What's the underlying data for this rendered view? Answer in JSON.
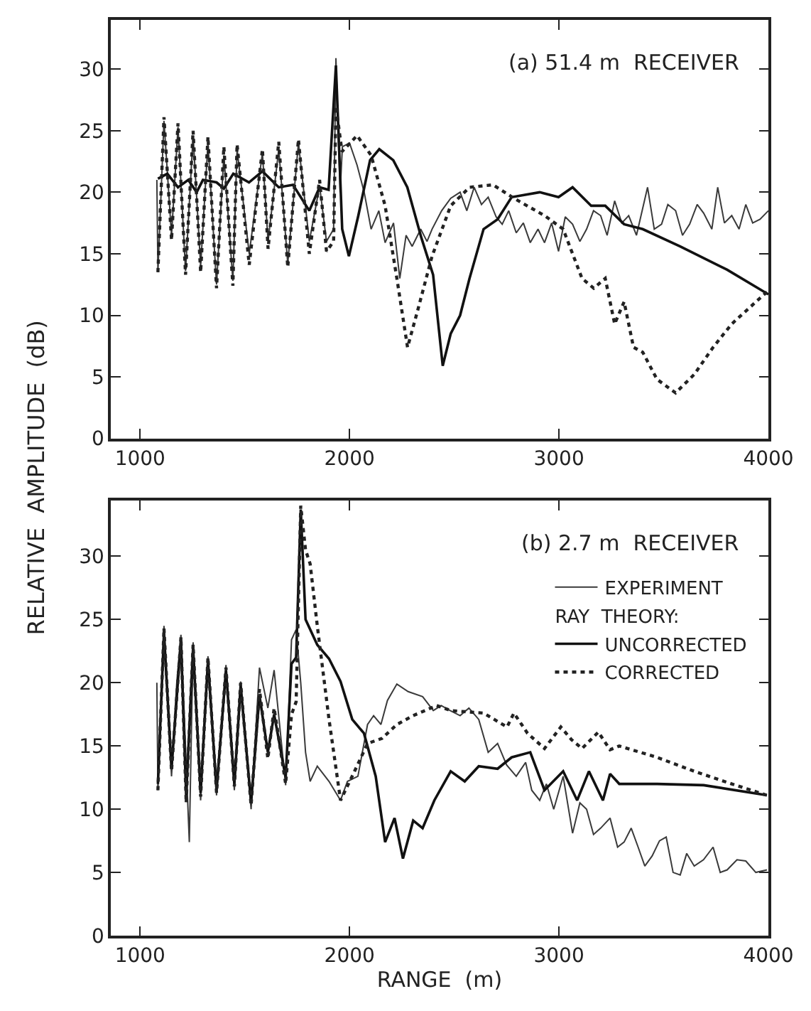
{
  "chart_data": [
    {
      "type": "line",
      "annotations": [
        "(a) 51.4 m  RECEIVER"
      ],
      "ylabel": "RELATIVE  AMPLITUDE  (dB)",
      "xlim": [
        860,
        4000
      ],
      "xticks": [
        1000,
        2000,
        3000,
        4000
      ],
      "ylim": [
        0,
        34
      ],
      "yticks": [
        0,
        5,
        10,
        15,
        20,
        25,
        30
      ],
      "series": [
        {
          "color": "#3a3a3a",
          "line_style": "solid",
          "x": [
            1080,
            1085,
            1114,
            1150,
            1181,
            1217,
            1253,
            1289,
            1324,
            1365,
            1400,
            1443,
            1463,
            1521,
            1584,
            1611,
            1662,
            1705,
            1756,
            1808,
            1857,
            1890,
            1924,
            1935,
            1955,
            1966,
            2000,
            2036,
            2070,
            2103,
            2140,
            2170,
            2210,
            2240,
            2270,
            2299,
            2340,
            2370,
            2394,
            2440,
            2483,
            2528,
            2560,
            2595,
            2630,
            2662,
            2700,
            2729,
            2760,
            2796,
            2830,
            2863,
            2900,
            2931,
            2965,
            2998,
            3030,
            3065,
            3100,
            3132,
            3165,
            3199,
            3230,
            3266,
            3300,
            3333,
            3370,
            3423,
            3455,
            3490,
            3520,
            3557,
            3590,
            3624,
            3660,
            3691,
            3730,
            3758,
            3790,
            3825,
            3860,
            3892,
            3925,
            3960,
            4000
          ],
          "values": [
            21,
            13.5,
            25.8,
            16.5,
            25.3,
            13.6,
            24.6,
            14.0,
            24.0,
            12.5,
            23.0,
            12.8,
            23.5,
            15.0,
            23.2,
            16.0,
            23.5,
            14.2,
            24.0,
            16.0,
            20.5,
            16.0,
            17.0,
            30.9,
            20.0,
            23.7,
            24.0,
            22.2,
            20.0,
            17.0,
            18.5,
            15.9,
            17.5,
            13.0,
            16.5,
            15.6,
            17.0,
            16.0,
            17.0,
            18.5,
            19.5,
            20.0,
            18.5,
            20.4,
            19.0,
            19.6,
            18.0,
            17.4,
            18.5,
            16.7,
            17.5,
            15.9,
            17.0,
            15.9,
            17.5,
            15.2,
            18.0,
            17.4,
            16.0,
            17.0,
            18.5,
            18.1,
            16.5,
            19.3,
            17.5,
            18.1,
            16.5,
            20.4,
            17.0,
            17.4,
            19.0,
            18.5,
            16.5,
            17.4,
            19.0,
            18.3,
            17.0,
            20.4,
            17.5,
            18.1,
            17.0,
            19.0,
            17.5,
            17.8,
            18.5
          ]
        },
        {
          "color": "#111111",
          "line_style": "solid",
          "x": [
            1085,
            1130,
            1181,
            1230,
            1270,
            1300,
            1365,
            1400,
            1445,
            1520,
            1584,
            1662,
            1730,
            1808,
            1857,
            1900,
            1935,
            1965,
            1997,
            2042,
            2098,
            2142,
            2209,
            2276,
            2343,
            2399,
            2445,
            2483,
            2528,
            2573,
            2640,
            2707,
            2774,
            2908,
            2998,
            3065,
            3154,
            3221,
            3311,
            3400,
            3579,
            3803,
            4000
          ],
          "values": [
            21.1,
            21.5,
            20.4,
            21.0,
            20.0,
            21.0,
            20.8,
            20.3,
            21.5,
            20.8,
            21.7,
            20.4,
            20.6,
            18.5,
            20.4,
            20.2,
            30.3,
            17.0,
            14.8,
            18.1,
            22.6,
            23.5,
            22.6,
            20.4,
            16.3,
            13.3,
            5.9,
            8.5,
            10.0,
            13.0,
            17.0,
            17.8,
            19.6,
            20.0,
            19.6,
            20.4,
            18.9,
            18.9,
            17.4,
            17.0,
            15.6,
            13.7,
            11.7
          ]
        },
        {
          "color": "#222222",
          "line_style": "dotted",
          "x": [
            1085,
            1114,
            1150,
            1181,
            1217,
            1253,
            1289,
            1324,
            1365,
            1400,
            1443,
            1463,
            1521,
            1584,
            1611,
            1662,
            1705,
            1756,
            1808,
            1857,
            1890,
            1924,
            1935,
            1964,
            2036,
            2103,
            2170,
            2226,
            2277,
            2327,
            2394,
            2483,
            2573,
            2685,
            2796,
            2931,
            3020,
            3110,
            3166,
            3221,
            3266,
            3311,
            3356,
            3400,
            3468,
            3557,
            3646,
            3736,
            3825,
            3915,
            3993
          ],
          "values": [
            13.5,
            26.1,
            16.1,
            25.6,
            13.3,
            25.0,
            13.5,
            24.5,
            12.2,
            23.7,
            12.4,
            23.9,
            14.1,
            23.5,
            15.4,
            24.1,
            13.9,
            24.3,
            15.0,
            21.0,
            15.2,
            16.0,
            27.0,
            23.3,
            24.6,
            23.0,
            18.9,
            13.0,
            7.4,
            10.5,
            14.8,
            18.9,
            20.4,
            20.6,
            19.4,
            18.1,
            17.0,
            13.0,
            12.2,
            13.0,
            9.3,
            11.1,
            7.4,
            7.0,
            4.8,
            3.7,
            5.2,
            7.4,
            9.3,
            10.7,
            11.9
          ]
        }
      ]
    },
    {
      "type": "line",
      "annotations": [
        "(b) 2.7 m  RECEIVER"
      ],
      "xlabel": "RANGE  (m)",
      "legend_title": "RAY  THEORY:",
      "xlim": [
        860,
        4000
      ],
      "xticks": [
        1000,
        2000,
        3000,
        4000
      ],
      "ylim": [
        0,
        34.4
      ],
      "yticks": [
        0,
        5,
        10,
        15,
        20,
        25,
        30
      ],
      "legend": "top right",
      "series": [
        {
          "name": "EXPERIMENT",
          "color": "#3a3a3a",
          "line_style": "solid",
          "x": [
            1080,
            1085,
            1114,
            1150,
            1175,
            1195,
            1235,
            1253,
            1289,
            1324,
            1365,
            1410,
            1450,
            1480,
            1530,
            1570,
            1610,
            1640,
            1695,
            1723,
            1745,
            1767,
            1790,
            1812,
            1846,
            1902,
            1957,
            1990,
            2040,
            2086,
            2115,
            2150,
            2181,
            2226,
            2280,
            2349,
            2400,
            2438,
            2480,
            2528,
            2570,
            2617,
            2662,
            2707,
            2750,
            2796,
            2841,
            2870,
            2908,
            2940,
            2975,
            3020,
            3065,
            3100,
            3132,
            3165,
            3199,
            3244,
            3280,
            3311,
            3345,
            3378,
            3410,
            3445,
            3480,
            3512,
            3545,
            3579,
            3610,
            3646,
            3690,
            3736,
            3770,
            3803,
            3850,
            3892,
            3940,
            3993
          ],
          "values": [
            20,
            11.5,
            24.5,
            12.6,
            20,
            23.8,
            7.4,
            23.2,
            10.7,
            22.1,
            11.1,
            21.4,
            11.5,
            20.1,
            10.0,
            21.2,
            18,
            21.0,
            11.9,
            23.4,
            24.2,
            20,
            14.5,
            12.2,
            13.4,
            12.2,
            10.7,
            12.2,
            12.6,
            16.7,
            17.4,
            16.7,
            18.6,
            19.9,
            19.3,
            18.9,
            17.8,
            18.2,
            17.8,
            17.4,
            18.0,
            17.1,
            14.5,
            15.2,
            13.5,
            12.6,
            13.7,
            11.5,
            10.7,
            12.0,
            10.0,
            12.6,
            8.1,
            10.5,
            10.0,
            8.0,
            8.5,
            9.3,
            7.0,
            7.4,
            8.5,
            7.0,
            5.5,
            6.3,
            7.5,
            7.8,
            5.0,
            4.8,
            6.5,
            5.5,
            6.0,
            7.0,
            5.0,
            5.2,
            6.0,
            5.9,
            5.0,
            5.2
          ]
        },
        {
          "name": "UNCORRECTED",
          "color": "#111111",
          "line_style": "solid",
          "x": [
            1085,
            1114,
            1150,
            1195,
            1220,
            1253,
            1289,
            1324,
            1365,
            1410,
            1450,
            1480,
            1530,
            1570,
            1610,
            1640,
            1695,
            1723,
            1745,
            1767,
            1790,
            1846,
            1902,
            1957,
            2013,
            2069,
            2125,
            2170,
            2215,
            2255,
            2304,
            2349,
            2405,
            2483,
            2550,
            2617,
            2707,
            2774,
            2863,
            2931,
            3020,
            3087,
            3143,
            3210,
            3244,
            3288,
            3468,
            3691,
            3993
          ],
          "values": [
            12.0,
            24.0,
            13.2,
            23.4,
            11.0,
            22.8,
            11.3,
            21.8,
            11.5,
            21.0,
            12.0,
            19.8,
            10.5,
            19.0,
            14.5,
            17.5,
            12.5,
            21.5,
            22.0,
            33.7,
            25.0,
            23.0,
            21.9,
            20.1,
            17.1,
            16.0,
            12.6,
            7.4,
            9.3,
            6.1,
            9.1,
            8.5,
            10.7,
            13.0,
            12.2,
            13.4,
            13.2,
            14.1,
            14.5,
            11.5,
            13.0,
            10.7,
            13.0,
            10.7,
            12.8,
            12.0,
            12.0,
            11.9,
            11.1
          ]
        },
        {
          "name": "CORRECTED",
          "color": "#222222",
          "line_style": "dotted",
          "x": [
            1085,
            1114,
            1150,
            1195,
            1220,
            1253,
            1289,
            1324,
            1365,
            1410,
            1450,
            1480,
            1530,
            1570,
            1610,
            1640,
            1695,
            1723,
            1745,
            1767,
            1790,
            1812,
            1846,
            1902,
            1957,
            2024,
            2086,
            2155,
            2226,
            2304,
            2416,
            2483,
            2640,
            2752,
            2785,
            2850,
            2931,
            3009,
            3060,
            3110,
            3188,
            3244,
            3288,
            3468,
            3646,
            3825,
            3993
          ],
          "values": [
            11.5,
            24.3,
            13.0,
            23.6,
            10.5,
            23.0,
            11.0,
            22.0,
            11.3,
            21.2,
            11.8,
            20.0,
            10.3,
            19.5,
            14.0,
            18.0,
            12.0,
            17.5,
            18.5,
            34.0,
            30.5,
            29.4,
            24.5,
            17.1,
            10.7,
            13.0,
            15.2,
            15.6,
            16.7,
            17.4,
            18.2,
            17.8,
            17.6,
            16.5,
            17.6,
            16.0,
            14.8,
            16.5,
            15.5,
            14.8,
            16.1,
            14.7,
            15.0,
            14.1,
            13.0,
            12.0,
            11.1
          ]
        }
      ]
    }
  ]
}
